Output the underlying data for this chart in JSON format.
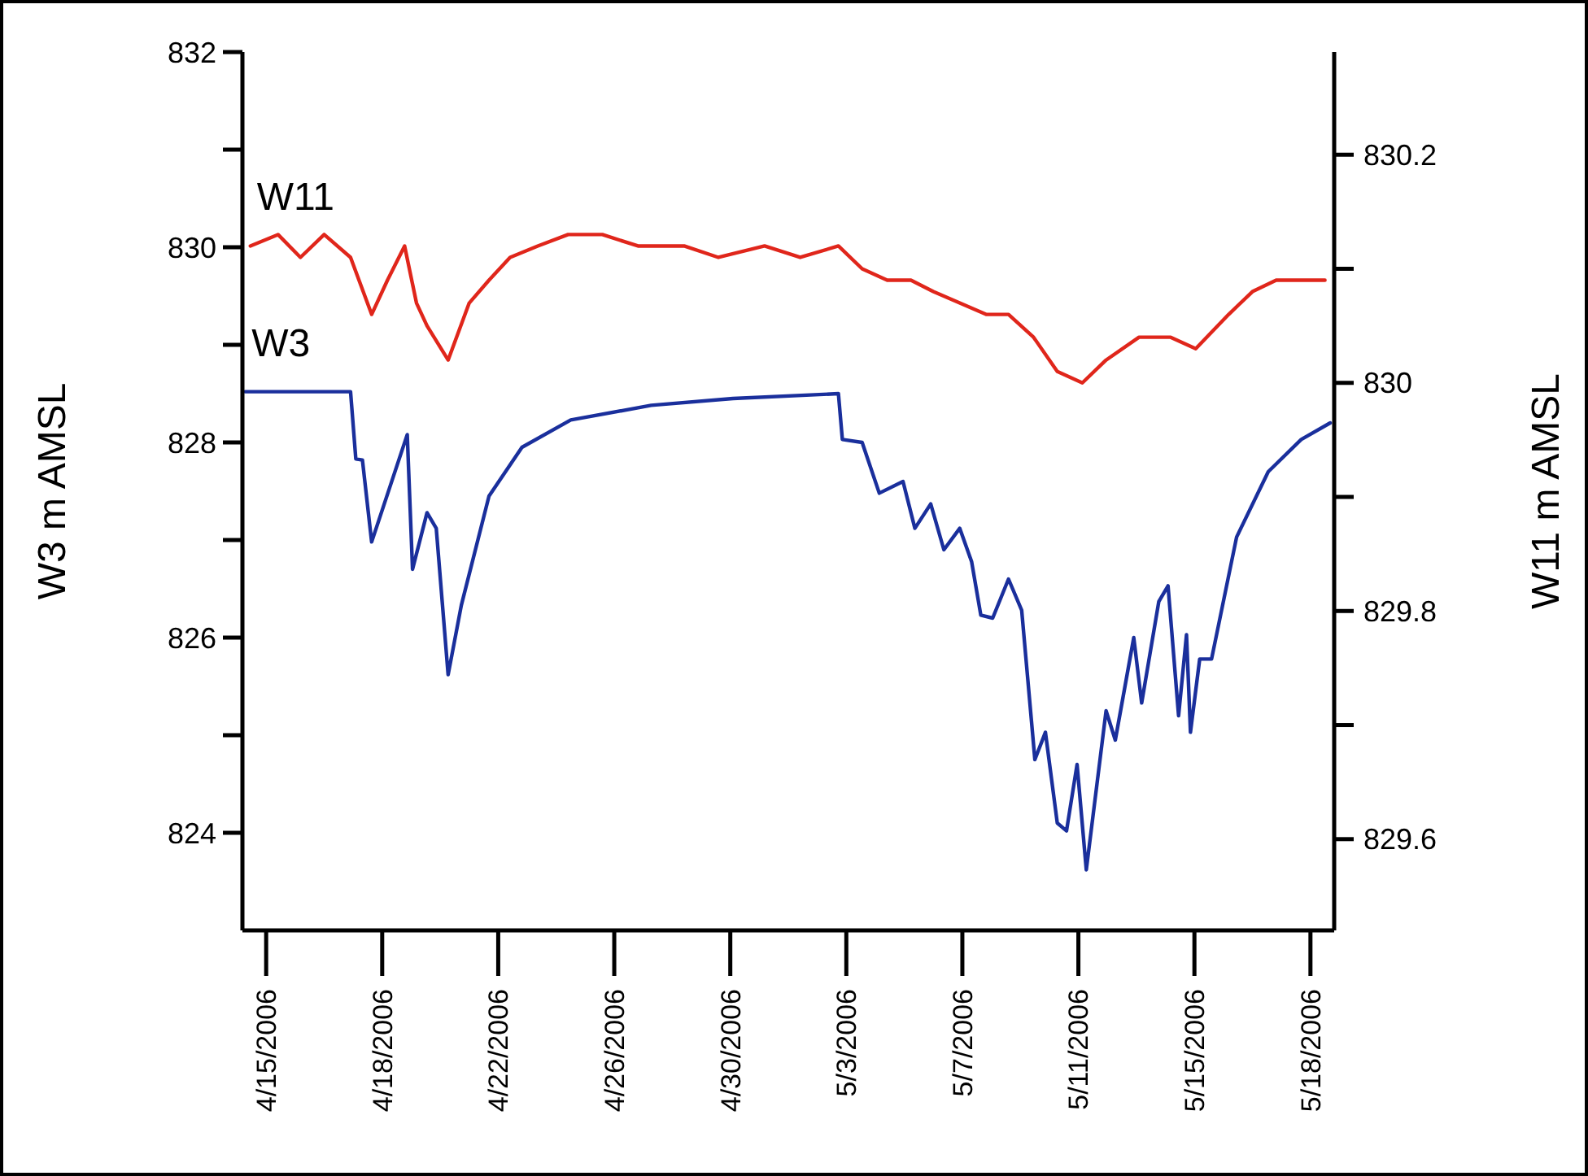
{
  "chart_data": {
    "type": "line",
    "ylabel": "W3 m AMSL",
    "y2label": "W11 m AMSL",
    "xlim": [
      "2006-04-14T06:00",
      "2006-05-18T18:00"
    ],
    "xticks": [
      {
        "value": "2006-04-15T00:00",
        "label": "4/15/2006"
      },
      {
        "value": "2006-04-18T16:00",
        "label": "4/18/2006"
      },
      {
        "value": "2006-04-22T08:00",
        "label": "4/22/2006"
      },
      {
        "value": "2006-04-26T00:00",
        "label": "4/26/2006"
      },
      {
        "value": "2006-04-29T16:00",
        "label": "4/30/2006"
      },
      {
        "value": "2006-05-03T08:00",
        "label": "5/3/2006"
      },
      {
        "value": "2006-05-07T00:00",
        "label": "5/7/2006"
      },
      {
        "value": "2006-05-10T16:00",
        "label": "5/11/2006"
      },
      {
        "value": "2006-05-14T08:00",
        "label": "5/15/2006"
      },
      {
        "value": "2006-05-18T00:00",
        "label": "5/18/2006"
      }
    ],
    "ylim": [
      823,
      832
    ],
    "yticks": [
      824,
      {
        "value": 825,
        "label": null
      },
      826,
      {
        "value": 827,
        "label": null
      },
      828,
      {
        "value": 829,
        "label": null
      },
      830,
      {
        "value": 831,
        "label": null
      },
      832
    ],
    "y2lim": [
      829.52,
      830.29
    ],
    "y2ticks": [
      829.6,
      {
        "value": 829.7,
        "label": null
      },
      829.8,
      {
        "value": 829.9,
        "label": null
      },
      830,
      {
        "value": 830.1,
        "label": null
      },
      830.2
    ],
    "grid": false,
    "marker": "none",
    "line_style": "solid",
    "series": [
      {
        "name": "W11",
        "color": "#e0261b",
        "axis": "y2",
        "x": [
          "2006-04-14T12:00",
          "2006-04-15T09:00",
          "2006-04-16T02:00",
          "2006-04-16T20:00",
          "2006-04-17T16:00",
          "2006-04-18T08:00",
          "2006-04-18T20:00",
          "2006-04-19T09:00",
          "2006-04-19T18:00",
          "2006-04-20T02:00",
          "2006-04-20T18:00",
          "2006-04-21T10:00",
          "2006-04-22T01:00",
          "2006-04-22T17:00",
          "2006-04-23T14:00",
          "2006-04-24T13:00",
          "2006-04-25T15:00",
          "2006-04-26T18:00",
          "2006-04-28T05:00",
          "2006-04-29T07:00",
          "2006-04-30T18:00",
          "2006-05-01T21:00",
          "2006-05-03T02:00",
          "2006-05-03T20:00",
          "2006-05-04T15:00",
          "2006-05-05T09:00",
          "2006-05-06T02:00",
          "2006-05-06T22:00",
          "2006-05-07T18:00",
          "2006-05-08T11:00",
          "2006-05-09T06:00",
          "2006-05-10T00:00",
          "2006-05-10T19:00",
          "2006-05-11T13:00",
          "2006-05-12T14:00",
          "2006-05-13T14:00",
          "2006-05-14T09:00",
          "2006-05-15T10:00",
          "2006-05-16T04:00",
          "2006-05-16T22:00",
          "2006-05-17T17:00",
          "2006-05-18T11:00"
        ],
        "values": [
          830.12,
          830.13,
          830.11,
          830.13,
          830.11,
          830.06,
          830.09,
          830.12,
          830.07,
          830.05,
          830.02,
          830.07,
          830.09,
          830.11,
          830.12,
          830.13,
          830.13,
          830.12,
          830.12,
          830.11,
          830.12,
          830.11,
          830.12,
          830.1,
          830.09,
          830.09,
          830.08,
          830.07,
          830.06,
          830.06,
          830.04,
          830.01,
          830,
          830.02,
          830.04,
          830.04,
          830.03,
          830.06,
          830.08,
          830.09,
          830.09,
          830.09
        ]
      },
      {
        "name": "W3",
        "color": "#1a2f9c",
        "axis": "y",
        "x": [
          "2006-04-14T08:00",
          "2006-04-17T16:00",
          "2006-04-17T20:00",
          "2006-04-18T01:00",
          "2006-04-18T08:00",
          "2006-04-19T11:00",
          "2006-04-19T15:00",
          "2006-04-20T02:00",
          "2006-04-20T09:00",
          "2006-04-20T18:00",
          "2006-04-21T04:00",
          "2006-04-22T01:00",
          "2006-04-23T02:00",
          "2006-04-24T15:00",
          "2006-04-27T04:00",
          "2006-04-29T18:00",
          "2006-05-03T02:00",
          "2006-05-03T05:00",
          "2006-05-03T20:00",
          "2006-05-04T09:00",
          "2006-05-05T03:00",
          "2006-05-05T12:00",
          "2006-05-06T00:00",
          "2006-05-06T10:00",
          "2006-05-06T22:00",
          "2006-05-07T07:00",
          "2006-05-07T14:00",
          "2006-05-07T23:00",
          "2006-05-08T11:00",
          "2006-05-08T21:00",
          "2006-05-09T07:00",
          "2006-05-09T15:00",
          "2006-05-10T00:00",
          "2006-05-10T07:00",
          "2006-05-10T15:00",
          "2006-05-10T22:00",
          "2006-05-11T13:00",
          "2006-05-11T20:00",
          "2006-05-12T10:00",
          "2006-05-12T16:00",
          "2006-05-13T05:00",
          "2006-05-13T12:00",
          "2006-05-13T20:00",
          "2006-05-14T02:00",
          "2006-05-14T05:00",
          "2006-05-14T12:00",
          "2006-05-14T21:00",
          "2006-05-15T16:00",
          "2006-05-16T16:00",
          "2006-05-17T17:00",
          "2006-05-18T15:00"
        ],
        "values": [
          828.52,
          828.52,
          827.83,
          827.82,
          826.98,
          828.08,
          826.7,
          827.28,
          827.12,
          825.62,
          826.33,
          827.45,
          827.95,
          828.23,
          828.38,
          828.45,
          828.5,
          828.03,
          828,
          827.48,
          827.6,
          827.12,
          827.37,
          826.9,
          827.12,
          826.78,
          826.23,
          826.2,
          826.6,
          826.28,
          824.75,
          825.03,
          824.1,
          824.02,
          824.7,
          823.62,
          825.25,
          824.95,
          826,
          825.33,
          826.37,
          826.53,
          825.2,
          826.03,
          825.03,
          825.78,
          825.78,
          827.03,
          827.7,
          828.03,
          828.2
        ]
      }
    ]
  }
}
